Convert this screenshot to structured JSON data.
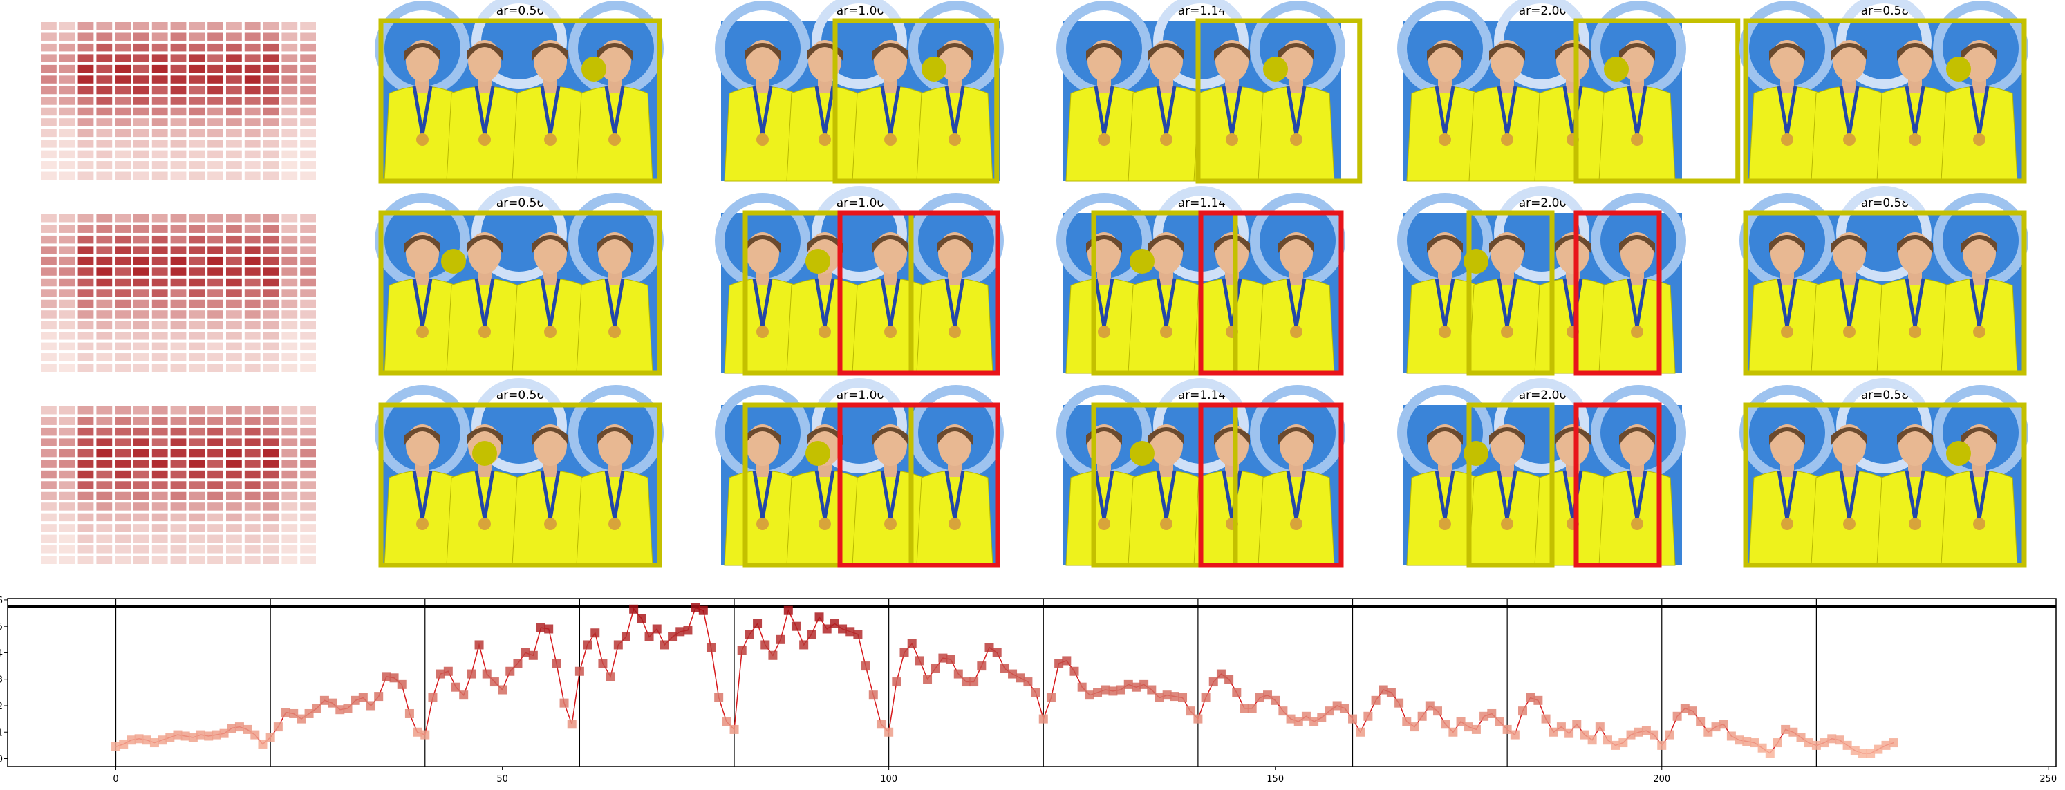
{
  "panel_rows": [
    {
      "panels": [
        {
          "title": "ar=0.56",
          "boxes": [
            "olive"
          ],
          "dot": "right"
        },
        {
          "title": "ar=1.00",
          "boxes": [
            "olive"
          ],
          "dot": "right"
        },
        {
          "title": "ar=1.14",
          "boxes": [
            "olive"
          ],
          "dot": "right"
        },
        {
          "title": "ar=2.00",
          "boxes": [
            "olive"
          ],
          "dot": "right"
        },
        {
          "title": "ar=0.58",
          "boxes": [
            "olive"
          ],
          "dot": "right"
        }
      ]
    },
    {
      "panels": [
        {
          "title": "ar=0.56",
          "boxes": [
            "olive"
          ],
          "dot": "left"
        },
        {
          "title": "ar=1.00",
          "boxes": [
            "olive",
            "red"
          ],
          "dot": "left"
        },
        {
          "title": "ar=1.14",
          "boxes": [
            "olive",
            "red"
          ],
          "dot": "left"
        },
        {
          "title": "ar=2.00",
          "boxes": [
            "olive",
            "red"
          ],
          "dot": "left"
        },
        {
          "title": "ar=0.58",
          "boxes": [
            "olive"
          ],
          "dot": "none"
        }
      ]
    },
    {
      "panels": [
        {
          "title": "ar=0.56",
          "boxes": [
            "olive"
          ],
          "dot": "center"
        },
        {
          "title": "ar=1.00",
          "boxes": [
            "olive",
            "red"
          ],
          "dot": "left"
        },
        {
          "title": "ar=1.14",
          "boxes": [
            "olive",
            "red"
          ],
          "dot": "left"
        },
        {
          "title": "ar=2.00",
          "boxes": [
            "olive",
            "red"
          ],
          "dot": "left"
        },
        {
          "title": "ar=0.58",
          "boxes": [
            "olive"
          ],
          "dot": "right"
        }
      ]
    }
  ],
  "colors": {
    "olive": "#c4c000",
    "red": "#e8141a",
    "photo_bg": "#3a84d8",
    "jacket": "#eef21c",
    "heat_hi": "#a50f15",
    "heat_lo": "#fff5f0"
  },
  "chart_data": {
    "type": "line",
    "title": "",
    "xlabel": "",
    "ylabel": "",
    "xlim": [
      -14,
      251
    ],
    "ylim": [
      -0.3,
      6.05
    ],
    "xticks": [
      "0",
      "50",
      "100",
      "150",
      "200",
      "250"
    ],
    "yticks": [
      "0",
      "1",
      "2",
      "3",
      "4",
      "5",
      "6"
    ],
    "vlines": [
      0,
      20,
      40,
      60,
      80,
      100,
      120,
      140,
      160,
      180,
      200,
      220
    ],
    "hline": 5.75,
    "color": "#d7191c",
    "marker": "square",
    "y": [
      0.45,
      0.55,
      0.7,
      0.75,
      0.7,
      0.6,
      0.7,
      0.8,
      0.9,
      0.85,
      0.8,
      0.9,
      0.85,
      0.9,
      0.95,
      1.15,
      1.2,
      1.1,
      0.9,
      0.55,
      0.8,
      1.2,
      1.75,
      1.7,
      1.5,
      1.7,
      1.9,
      2.2,
      2.1,
      1.85,
      1.9,
      2.2,
      2.3,
      2.0,
      2.35,
      3.1,
      3.05,
      2.8,
      1.7,
      1.0,
      0.9,
      2.3,
      3.2,
      3.3,
      2.7,
      2.4,
      3.2,
      4.3,
      3.2,
      2.9,
      2.6,
      3.3,
      3.6,
      4.0,
      3.9,
      4.95,
      4.9,
      3.6,
      2.1,
      1.3,
      3.3,
      4.3,
      4.75,
      3.6,
      3.1,
      4.3,
      4.6,
      5.65,
      5.3,
      4.6,
      4.9,
      4.3,
      4.6,
      4.8,
      4.85,
      5.7,
      5.6,
      4.2,
      2.3,
      1.4,
      1.1,
      4.1,
      4.7,
      5.1,
      4.3,
      3.9,
      4.5,
      5.6,
      5.0,
      4.3,
      4.7,
      5.35,
      4.9,
      5.1,
      4.9,
      4.8,
      4.7,
      3.5,
      2.4,
      1.3,
      1.0,
      2.9,
      4.0,
      4.35,
      3.7,
      3.0,
      3.4,
      3.8,
      3.75,
      3.2,
      2.9,
      2.9,
      3.5,
      4.2,
      4.0,
      3.4,
      3.2,
      3.05,
      2.9,
      2.5,
      1.5,
      2.3,
      3.6,
      3.7,
      3.3,
      2.7,
      2.4,
      2.5,
      2.6,
      2.55,
      2.6,
      2.8,
      2.7,
      2.8,
      2.6,
      2.3,
      2.4,
      2.35,
      2.3,
      1.8,
      1.5,
      2.3,
      2.9,
      3.2,
      3.0,
      2.5,
      1.9,
      1.9,
      2.3,
      2.4,
      2.2,
      1.8,
      1.5,
      1.4,
      1.6,
      1.4,
      1.55,
      1.8,
      2.0,
      1.9,
      1.5,
      1.0,
      1.6,
      2.2,
      2.6,
      2.5,
      2.1,
      1.4,
      1.2,
      1.6,
      2.0,
      1.8,
      1.3,
      1.0,
      1.4,
      1.2,
      1.1,
      1.6,
      1.7,
      1.4,
      1.1,
      0.9,
      1.8,
      2.3,
      2.2,
      1.5,
      1.0,
      1.2,
      0.95,
      1.3,
      0.9,
      0.7,
      1.2,
      0.7,
      0.5,
      0.6,
      0.9,
      1.0,
      1.05,
      0.9,
      0.5,
      0.9,
      1.6,
      1.9,
      1.8,
      1.4,
      1.0,
      1.2,
      1.3,
      0.85,
      0.7,
      0.65,
      0.6,
      0.4,
      0.2,
      0.6,
      1.1,
      1.0,
      0.8,
      0.6,
      0.5,
      0.6,
      0.75,
      0.7,
      0.5,
      0.3,
      0.2,
      0.2,
      0.35,
      0.5,
      0.6
    ]
  }
}
